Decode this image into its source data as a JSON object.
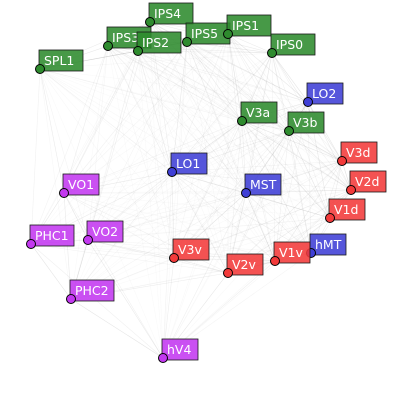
{
  "groups": {
    "green": {
      "color": "#2e8b2e"
    },
    "blue": {
      "color": "#3f3fd6"
    },
    "red": {
      "color": "#f23a3a"
    },
    "purple": {
      "color": "#c338f0"
    }
  },
  "nodes": [
    {
      "id": "IPS4",
      "group": "green"
    },
    {
      "id": "IPS3",
      "group": "green"
    },
    {
      "id": "IPS2",
      "group": "green"
    },
    {
      "id": "IPS5",
      "group": "green"
    },
    {
      "id": "IPS1",
      "group": "green"
    },
    {
      "id": "IPS0",
      "group": "green"
    },
    {
      "id": "SPL1",
      "group": "green"
    },
    {
      "id": "V3a",
      "group": "green"
    },
    {
      "id": "V3b",
      "group": "green"
    },
    {
      "id": "LO2",
      "group": "blue"
    },
    {
      "id": "LO1",
      "group": "blue"
    },
    {
      "id": "MST",
      "group": "blue"
    },
    {
      "id": "hMT",
      "group": "blue"
    },
    {
      "id": "V3d",
      "group": "red"
    },
    {
      "id": "V2d",
      "group": "red"
    },
    {
      "id": "V1d",
      "group": "red"
    },
    {
      "id": "V3v",
      "group": "red"
    },
    {
      "id": "V2v",
      "group": "red"
    },
    {
      "id": "V1v",
      "group": "red"
    },
    {
      "id": "VO1",
      "group": "purple"
    },
    {
      "id": "PHC1",
      "group": "purple"
    },
    {
      "id": "VO2",
      "group": "purple"
    },
    {
      "id": "PHC2",
      "group": "purple"
    },
    {
      "id": "hV4",
      "group": "purple"
    }
  ]
}
